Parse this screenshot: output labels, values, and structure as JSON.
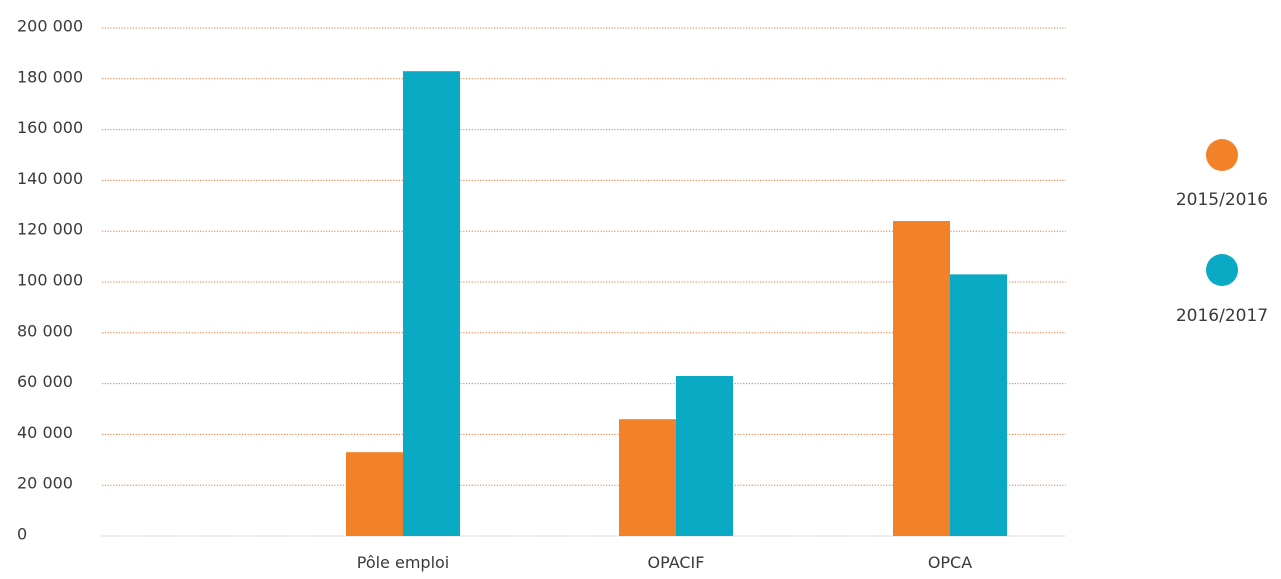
{
  "chart_data": {
    "type": "bar",
    "categories": [
      "Pôle emploi",
      "OPACIF",
      "OPCA"
    ],
    "series": [
      {
        "name": "2015/2016",
        "color": "#f28229",
        "values": [
          33000,
          46000,
          124000
        ]
      },
      {
        "name": "2016/2017",
        "color": "#0aaac5",
        "values": [
          183000,
          63000,
          103000
        ]
      }
    ],
    "ylim": [
      0,
      200000
    ],
    "yticks": [
      0,
      20000,
      40000,
      60000,
      80000,
      100000,
      120000,
      140000,
      160000,
      180000,
      200000
    ],
    "ytick_labels": [
      "0",
      "20 000",
      "40 000",
      "60 000",
      "80 000",
      "100 000",
      "120 000",
      "140 000",
      "160 000",
      "180 000",
      "200 000"
    ],
    "title": "",
    "xlabel": "",
    "ylabel": "",
    "grid": true,
    "grid_color": "#e8793a",
    "legend_position": "right"
  }
}
